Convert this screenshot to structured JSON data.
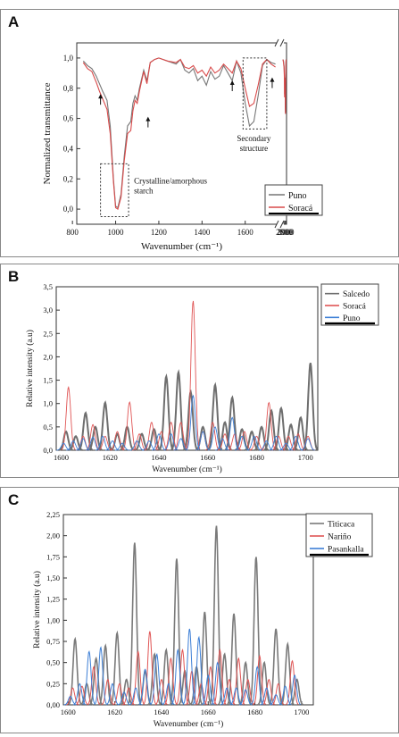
{
  "panels": {
    "a": {
      "letter": "A"
    },
    "b": {
      "letter": "B"
    },
    "c": {
      "letter": "C"
    }
  },
  "chart_data": [
    {
      "type": "line",
      "panel": "A",
      "xlabel": "Wavenumber (cm⁻¹)",
      "ylabel": "Normalized transmittance",
      "x_ticks_left": [
        800,
        1000,
        1200,
        1400,
        1600
      ],
      "x_ticks_right": [
        2800,
        2900,
        3000
      ],
      "y_ticks": [
        "0,0",
        "0,2",
        "0,4",
        "0,6",
        "0,8",
        "1,0"
      ],
      "x_break": [
        1750,
        2700
      ],
      "ylim": [
        -0.1,
        1.1
      ],
      "legend_position": "bottom-right",
      "annotations": [
        {
          "text_lines": [
            "Crystalline/amorphous",
            "starch"
          ],
          "box_x": [
            930,
            1060
          ],
          "box_y": [
            -0.05,
            0.3
          ]
        },
        {
          "text_lines": [
            "Secondary",
            "structure"
          ],
          "box_x": [
            1590,
            1700
          ],
          "box_y": [
            0.53,
            1.0
          ]
        }
      ],
      "arrows_at": [
        {
          "x": 930,
          "y": 0.75
        },
        {
          "x": 1150,
          "y": 0.6
        },
        {
          "x": 1540,
          "y": 0.84
        },
        {
          "x": 1725,
          "y": 0.86
        }
      ],
      "series": [
        {
          "name": "Puno",
          "color": "#777777",
          "x": [
            850,
            870,
            890,
            910,
            925,
            940,
            960,
            975,
            990,
            1000,
            1010,
            1025,
            1040,
            1055,
            1070,
            1080,
            1090,
            1100,
            1110,
            1130,
            1145,
            1160,
            1180,
            1200,
            1240,
            1280,
            1300,
            1320,
            1340,
            1360,
            1380,
            1400,
            1420,
            1440,
            1460,
            1480,
            1500,
            1520,
            1540,
            1560,
            1580,
            1600,
            1620,
            1640,
            1660,
            1680,
            1700,
            1720,
            1740,
            2700,
            2750,
            2780,
            2800,
            2820,
            2840,
            2855,
            2870,
            2900,
            2920,
            2935,
            2950,
            2980,
            3000
          ],
          "y": [
            0.98,
            0.95,
            0.93,
            0.88,
            0.83,
            0.78,
            0.72,
            0.55,
            0.2,
            0.02,
            0.01,
            0.1,
            0.35,
            0.55,
            0.58,
            0.7,
            0.75,
            0.72,
            0.8,
            0.92,
            0.85,
            0.97,
            0.99,
            1.0,
            0.98,
            0.96,
            0.99,
            0.92,
            0.9,
            0.93,
            0.85,
            0.88,
            0.82,
            0.91,
            0.86,
            0.88,
            0.95,
            0.9,
            0.85,
            0.98,
            0.9,
            0.7,
            0.55,
            0.58,
            0.75,
            0.95,
            0.99,
            0.97,
            0.96,
            0.99,
            0.98,
            0.96,
            0.95,
            0.92,
            0.88,
            0.76,
            0.87,
            0.85,
            0.7,
            0.64,
            0.82,
            0.97,
            0.99
          ]
        },
        {
          "name": "Soracá",
          "color": "#d94a4a",
          "x": [
            850,
            870,
            890,
            910,
            925,
            940,
            960,
            975,
            990,
            1000,
            1010,
            1025,
            1040,
            1055,
            1070,
            1080,
            1090,
            1100,
            1110,
            1130,
            1145,
            1160,
            1180,
            1200,
            1240,
            1280,
            1300,
            1320,
            1340,
            1360,
            1380,
            1400,
            1420,
            1440,
            1460,
            1480,
            1500,
            1520,
            1540,
            1560,
            1580,
            1600,
            1620,
            1640,
            1660,
            1680,
            1700,
            1720,
            1740,
            2700,
            2750,
            2780,
            2800,
            2820,
            2840,
            2855,
            2870,
            2900,
            2920,
            2935,
            2950,
            2980,
            3000
          ],
          "y": [
            0.97,
            0.93,
            0.91,
            0.84,
            0.78,
            0.73,
            0.66,
            0.5,
            0.18,
            0.01,
            0.0,
            0.08,
            0.32,
            0.5,
            0.52,
            0.65,
            0.72,
            0.7,
            0.78,
            0.91,
            0.83,
            0.97,
            0.99,
            1.0,
            0.98,
            0.97,
            0.99,
            0.94,
            0.93,
            0.95,
            0.9,
            0.92,
            0.88,
            0.94,
            0.9,
            0.92,
            0.96,
            0.93,
            0.9,
            0.98,
            0.93,
            0.8,
            0.68,
            0.7,
            0.82,
            0.96,
            0.99,
            0.96,
            0.94,
            0.99,
            0.97,
            0.95,
            0.94,
            0.91,
            0.86,
            0.74,
            0.86,
            0.84,
            0.68,
            0.63,
            0.81,
            0.96,
            0.99
          ]
        }
      ]
    },
    {
      "type": "line",
      "panel": "B",
      "xlabel": "Wavenumber (cm⁻¹)",
      "ylabel": "Relative intensity (a.u)",
      "x_ticks": [
        1600,
        1620,
        1640,
        1660,
        1680,
        1700
      ],
      "y_ticks": [
        "0,0",
        "0,5",
        "1,0",
        "1,5",
        "2,0",
        "2,5",
        "3,0",
        "3,5"
      ],
      "xlim": [
        1598,
        1705
      ],
      "ylim": [
        0,
        3.5
      ],
      "legend_position": "top-right",
      "series": [
        {
          "name": "Salcedo",
          "color": "#6e6e6e",
          "width": 2.0,
          "peaks": [
            [
              1602,
              0.4
            ],
            [
              1606,
              0.3
            ],
            [
              1610,
              0.8
            ],
            [
              1614,
              0.5
            ],
            [
              1618,
              1.02
            ],
            [
              1623,
              0.35
            ],
            [
              1627,
              0.5
            ],
            [
              1633,
              0.35
            ],
            [
              1638,
              0.45
            ],
            [
              1643,
              1.58
            ],
            [
              1648,
              1.67
            ],
            [
              1653,
              1.25
            ],
            [
              1658,
              0.5
            ],
            [
              1663,
              1.4
            ],
            [
              1667,
              0.6
            ],
            [
              1670,
              1.13
            ],
            [
              1674,
              0.45
            ],
            [
              1678,
              0.4
            ],
            [
              1682,
              0.5
            ],
            [
              1686,
              0.85
            ],
            [
              1690,
              0.9
            ],
            [
              1694,
              0.55
            ],
            [
              1698,
              0.7
            ],
            [
              1702,
              1.87
            ]
          ]
        },
        {
          "name": "Soracá",
          "color": "#e05555",
          "width": 0.9,
          "peaks": [
            [
              1603,
              1.35
            ],
            [
              1609,
              0.3
            ],
            [
              1613,
              0.55
            ],
            [
              1618,
              0.3
            ],
            [
              1623,
              0.4
            ],
            [
              1628,
              1.03
            ],
            [
              1632,
              0.35
            ],
            [
              1637,
              0.6
            ],
            [
              1641,
              0.4
            ],
            [
              1645,
              0.6
            ],
            [
              1649,
              0.6
            ],
            [
              1654,
              3.2
            ],
            [
              1658,
              0.4
            ],
            [
              1662,
              0.6
            ],
            [
              1667,
              0.35
            ],
            [
              1671,
              0.35
            ],
            [
              1675,
              0.4
            ],
            [
              1680,
              0.3
            ],
            [
              1685,
              1.02
            ],
            [
              1689,
              0.3
            ],
            [
              1693,
              0.3
            ],
            [
              1697,
              0.35
            ],
            [
              1701,
              0.3
            ]
          ]
        },
        {
          "name": "Puno",
          "color": "#3d7fd6",
          "width": 0.9,
          "peaks": [
            [
              1601,
              0.15
            ],
            [
              1605,
              0.2
            ],
            [
              1609,
              0.25
            ],
            [
              1613,
              0.28
            ],
            [
              1617,
              0.3
            ],
            [
              1621,
              0.2
            ],
            [
              1625,
              0.15
            ],
            [
              1631,
              0.2
            ],
            [
              1636,
              0.2
            ],
            [
              1640,
              0.35
            ],
            [
              1645,
              0.35
            ],
            [
              1649,
              0.25
            ],
            [
              1654,
              1.17
            ],
            [
              1658,
              0.4
            ],
            [
              1663,
              0.5
            ],
            [
              1666,
              0.25
            ],
            [
              1670,
              0.7
            ],
            [
              1674,
              0.3
            ],
            [
              1679,
              0.3
            ],
            [
              1684,
              0.2
            ],
            [
              1688,
              0.3
            ],
            [
              1692,
              0.15
            ],
            [
              1696,
              0.3
            ],
            [
              1701,
              0.25
            ]
          ]
        }
      ]
    },
    {
      "type": "line",
      "panel": "C",
      "xlabel": "Wavenumber (cm⁻¹)",
      "ylabel": "Relative intensity (a.u)",
      "x_ticks": [
        1600,
        1620,
        1640,
        1660,
        1680,
        1700
      ],
      "y_ticks": [
        "0,00",
        "0,25",
        "0,50",
        "0,75",
        "1,00",
        "1,25",
        "1,50",
        "1,75",
        "2,00",
        "2,25"
      ],
      "xlim": [
        1598,
        1705
      ],
      "ylim": [
        0,
        2.25
      ],
      "legend_position": "top-right",
      "series": [
        {
          "name": "Titicaca",
          "color": "#7a7a7a",
          "width": 1.6,
          "peaks": [
            [
              1603,
              0.78
            ],
            [
              1608,
              0.25
            ],
            [
              1612,
              0.55
            ],
            [
              1616,
              0.7
            ],
            [
              1621,
              0.85
            ],
            [
              1625,
              0.3
            ],
            [
              1628.5,
              1.92
            ],
            [
              1633,
              0.4
            ],
            [
              1637,
              0.6
            ],
            [
              1642,
              0.65
            ],
            [
              1646.5,
              1.73
            ],
            [
              1650,
              0.4
            ],
            [
              1655,
              0.45
            ],
            [
              1658.5,
              1.1
            ],
            [
              1663.5,
              2.12
            ],
            [
              1667,
              0.6
            ],
            [
              1671,
              1.08
            ],
            [
              1676,
              0.5
            ],
            [
              1680.5,
              1.75
            ],
            [
              1684,
              0.5
            ],
            [
              1689,
              0.9
            ],
            [
              1694,
              0.72
            ],
            [
              1698,
              0.3
            ]
          ]
        },
        {
          "name": "Nariño",
          "color": "#e05555",
          "width": 1.0,
          "peaks": [
            [
              1602,
              0.2
            ],
            [
              1606,
              0.22
            ],
            [
              1611,
              0.45
            ],
            [
              1617,
              0.3
            ],
            [
              1622,
              0.25
            ],
            [
              1626,
              0.2
            ],
            [
              1630,
              0.63
            ],
            [
              1635,
              0.87
            ],
            [
              1640,
              0.3
            ],
            [
              1644,
              0.55
            ],
            [
              1649,
              0.65
            ],
            [
              1653,
              0.4
            ],
            [
              1657,
              0.25
            ],
            [
              1661,
              0.45
            ],
            [
              1665,
              0.65
            ],
            [
              1669,
              0.3
            ],
            [
              1673,
              0.55
            ],
            [
              1677,
              0.3
            ],
            [
              1682,
              0.58
            ],
            [
              1686,
              0.3
            ],
            [
              1690,
              0.25
            ],
            [
              1696,
              0.52
            ]
          ]
        },
        {
          "name": "Pasankalla",
          "color": "#3d7fd6",
          "width": 1.0,
          "peaks": [
            [
              1601,
              0.1
            ],
            [
              1605,
              0.25
            ],
            [
              1609,
              0.63
            ],
            [
              1614,
              0.68
            ],
            [
              1619,
              0.25
            ],
            [
              1624,
              0.15
            ],
            [
              1629,
              0.2
            ],
            [
              1633,
              0.42
            ],
            [
              1638,
              0.6
            ],
            [
              1643,
              0.25
            ],
            [
              1647,
              0.65
            ],
            [
              1652,
              0.9
            ],
            [
              1656,
              0.8
            ],
            [
              1660,
              0.35
            ],
            [
              1664,
              0.5
            ],
            [
              1668,
              0.2
            ],
            [
              1672,
              0.2
            ],
            [
              1676,
              0.18
            ],
            [
              1681,
              0.45
            ],
            [
              1685,
              0.2
            ],
            [
              1689,
              0.12
            ],
            [
              1693,
              0.22
            ],
            [
              1697,
              0.35
            ]
          ]
        }
      ]
    }
  ]
}
